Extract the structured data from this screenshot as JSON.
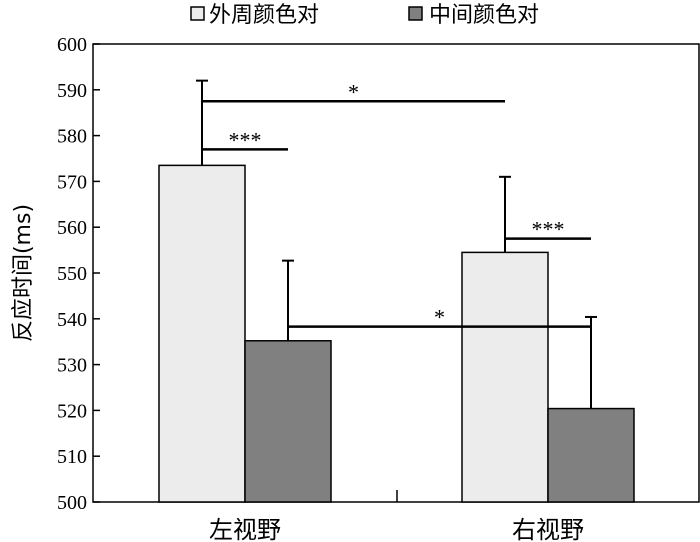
{
  "chart_data": {
    "type": "bar",
    "title": "",
    "xlabel": "",
    "ylabel": "反应时间(ms)",
    "ylim": [
      500,
      600
    ],
    "yticks": [
      500,
      510,
      520,
      530,
      540,
      550,
      560,
      570,
      580,
      590,
      600
    ],
    "categories": [
      "左视野",
      "右视野"
    ],
    "series": [
      {
        "name": "外周颜色对",
        "color": "#ececec",
        "values": [
          573.5,
          554.5
        ],
        "error": [
          18.5,
          16.5
        ]
      },
      {
        "name": "中间颜色对",
        "color": "#808080",
        "values": [
          535.2,
          520.4
        ],
        "error": [
          17.5,
          20
        ]
      }
    ],
    "legend_position": "top",
    "grid": false,
    "significance": [
      {
        "label": "*",
        "between": "左视野 外周颜色对 vs 右视野 外周颜色对",
        "y": 587.5
      },
      {
        "label": "***",
        "between": "左视野 外周颜色对 vs 左视野 中间颜色对",
        "y": 577
      },
      {
        "label": "***",
        "between": "右视野 外周颜色对 vs 右视野 中间颜色对",
        "y": 557.5
      },
      {
        "label": "*",
        "between": "左视野 中间颜色对 vs 右视野 中间颜色对",
        "y": 538.3
      }
    ]
  }
}
